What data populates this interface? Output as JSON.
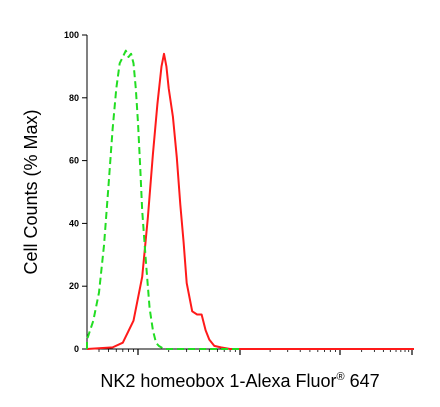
{
  "chart_data": {
    "type": "line",
    "title": "",
    "xlabel": "NK2 homeobox 1-Alexa Fluor",
    "xlabel_superscript": "®",
    "xlabel_suffix": " 647",
    "ylabel": "Cell Counts (% Max)",
    "x_scale": "log",
    "ylim": [
      0,
      100
    ],
    "y_ticks": [
      "0",
      "20",
      "40",
      "60",
      "80",
      "100"
    ],
    "grid": false,
    "series": [
      {
        "style": "solid",
        "color": "#ff1a1a",
        "x": [
          10,
          30,
          55,
          70,
          90,
          110,
          125,
          140,
          155,
          170,
          180,
          190,
          200,
          220,
          240,
          260,
          280,
          300,
          340,
          380,
          420,
          460,
          500,
          560,
          650,
          800,
          1000,
          1500,
          10000,
          300000
        ],
        "y": [
          0,
          0,
          0.5,
          2,
          9,
          23,
          42,
          62,
          78,
          90,
          94,
          90,
          83,
          74,
          61,
          46,
          34,
          21,
          12,
          11,
          11,
          6,
          3,
          1,
          0.5,
          0,
          0,
          0,
          0,
          0
        ]
      },
      {
        "style": "dashed",
        "color": "#22dd22",
        "x": [
          10,
          20,
          25,
          30,
          35,
          40,
          45,
          50,
          55,
          60,
          65,
          70,
          75,
          80,
          85,
          90,
          95,
          100,
          105,
          110,
          120,
          130,
          140,
          150,
          160,
          180,
          200,
          250,
          1000
        ],
        "y": [
          0,
          0,
          1,
          3,
          9,
          18,
          33,
          52,
          70,
          83,
          91,
          93,
          95,
          93,
          94,
          91,
          83,
          72,
          58,
          44,
          27,
          13,
          6,
          2,
          1,
          0,
          0,
          0,
          0
        ]
      }
    ]
  }
}
